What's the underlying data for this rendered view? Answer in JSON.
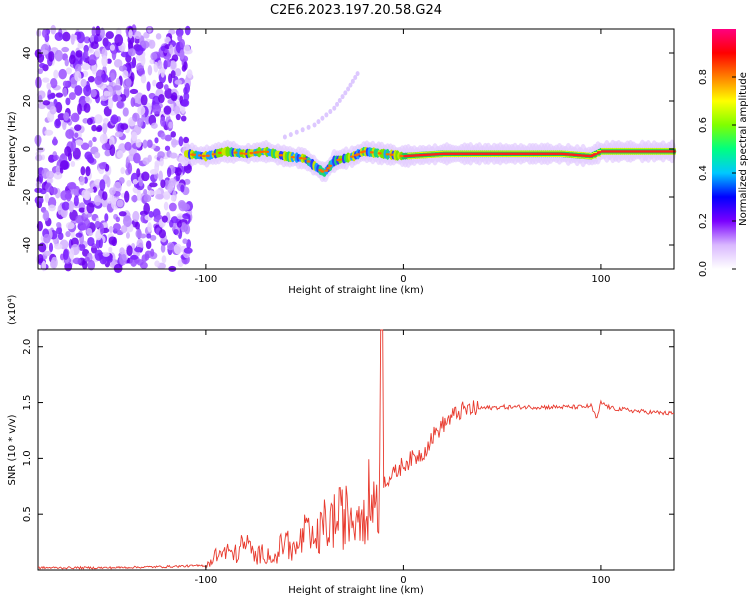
{
  "title": "C2E6.2023.197.20.58.G24",
  "chart_data": [
    {
      "type": "heatmap",
      "xlabel": "Height of straight line (km)",
      "ylabel": "Frequency (Hz)",
      "xlim": [
        -185,
        137
      ],
      "ylim": [
        -50,
        50
      ],
      "xticks": [
        -100,
        0,
        100
      ],
      "yticks": [
        -40,
        -20,
        0,
        20,
        40
      ],
      "grid": false,
      "colorbar": {
        "label": "Normalized spectral amplitude",
        "range": [
          0,
          1
        ],
        "ticks": [
          "0.0",
          "0.2",
          "0.4",
          "0.6",
          "0.8"
        ],
        "colors": [
          "#ffffff",
          "#d9b8ff",
          "#7a00ff",
          "#0000ff",
          "#00c8ff",
          "#00ff80",
          "#80ff00",
          "#ffff00",
          "#ff8000",
          "#ff0000",
          "#ff0080"
        ]
      },
      "noise_region_x": [
        -185,
        -108
      ],
      "signal_track": {
        "x": [
          -110,
          -100,
          -90,
          -80,
          -70,
          -60,
          -50,
          -45,
          -40,
          -35,
          -30,
          -25,
          -20,
          -10,
          0,
          20,
          40,
          60,
          80,
          95,
          100,
          120,
          137
        ],
        "freq": [
          -2,
          -3,
          -1,
          -2,
          -1,
          -3,
          -4,
          -7,
          -10,
          -5,
          -4,
          -3,
          -1,
          -2,
          -3,
          -2,
          -2,
          -2,
          -2,
          -3,
          -1,
          -1,
          -1
        ]
      },
      "secondary_trace": {
        "x": [
          -60,
          -45,
          -35,
          -28,
          -22
        ],
        "freq": [
          5,
          10,
          17,
          25,
          33
        ]
      }
    },
    {
      "type": "line",
      "xlabel": "Height of straight line (km)",
      "ylabel": "SNR (10 * v/v)",
      "y_multiplier": "(x10⁴)",
      "xlim": [
        -185,
        137
      ],
      "ylim": [
        0,
        2.15
      ],
      "xticks": [
        -100,
        0,
        100
      ],
      "yticks": [
        0.5,
        1.0,
        1.5,
        2.0
      ],
      "ytick_labels": [
        "0.5",
        "1.0",
        "1.5",
        "2.0"
      ],
      "grid": false,
      "color": "#e83a2e",
      "series": [
        {
          "x": [
            -185,
            -150,
            -120,
            -100,
            -96,
            -90,
            -85,
            -80,
            -75,
            -70,
            -65,
            -60,
            -55,
            -50,
            -45,
            -40,
            -35,
            -30,
            -25,
            -20,
            -15,
            -12,
            -11,
            -10,
            -5,
            0,
            5,
            10,
            15,
            20,
            25,
            30,
            40,
            50,
            60,
            70,
            80,
            90,
            95,
            98,
            100,
            105,
            110,
            120,
            137
          ],
          "y": [
            0.02,
            0.02,
            0.03,
            0.04,
            0.15,
            0.2,
            0.18,
            0.3,
            0.15,
            0.2,
            0.12,
            0.35,
            0.2,
            0.4,
            0.3,
            0.5,
            0.55,
            0.6,
            0.6,
            0.75,
            0.8,
            1.0,
            2.15,
            0.8,
            0.85,
            0.95,
            1.0,
            1.05,
            1.2,
            1.3,
            1.38,
            1.43,
            1.45,
            1.46,
            1.46,
            1.46,
            1.46,
            1.46,
            1.47,
            1.35,
            1.5,
            1.45,
            1.44,
            1.42,
            1.4
          ]
        }
      ]
    }
  ]
}
